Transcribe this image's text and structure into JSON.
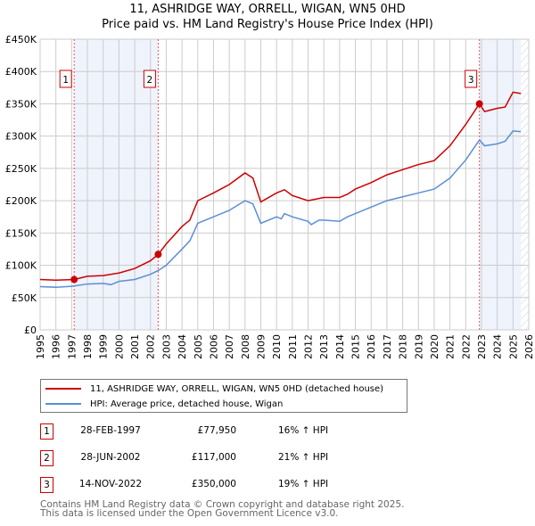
{
  "chart_data": {
    "type": "line",
    "title": "11, ASHRIDGE WAY, ORRELL, WIGAN, WN5 0HD",
    "subtitle": "Price paid vs. HM Land Registry's House Price Index (HPI)",
    "xlim": [
      1995,
      2026
    ],
    "ylim": [
      0,
      450000
    ],
    "yticks": [
      0,
      50000,
      100000,
      150000,
      200000,
      250000,
      300000,
      350000,
      400000,
      450000
    ],
    "ytick_labels": [
      "£0",
      "£50K",
      "£100K",
      "£150K",
      "£200K",
      "£250K",
      "£300K",
      "£350K",
      "£400K",
      "£450K"
    ],
    "xticks": [
      1995,
      1996,
      1997,
      1998,
      1999,
      2000,
      2001,
      2002,
      2003,
      2004,
      2005,
      2006,
      2007,
      2008,
      2009,
      2010,
      2011,
      2012,
      2013,
      2014,
      2015,
      2016,
      2017,
      2018,
      2019,
      2020,
      2021,
      2022,
      2023,
      2024,
      2025,
      2026
    ],
    "grid": true,
    "series": [
      {
        "name": "11, ASHRIDGE WAY, ORRELL, WIGAN, WN5 0HD (detached house)",
        "color": "#cc0000",
        "x": [
          1995,
          1996,
          1997.17,
          1998,
          1999,
          2000,
          2001,
          2002,
          2002.5,
          2003,
          2004,
          2004.5,
          2005,
          2006,
          2007,
          2008,
          2008.5,
          2009,
          2010,
          2010.5,
          2011,
          2012,
          2013,
          2014,
          2014.5,
          2015,
          2016,
          2017,
          2018,
          2019,
          2020,
          2021,
          2022,
          2022.87,
          2023.2,
          2024,
          2024.5,
          2025,
          2025.5
        ],
        "y": [
          78000,
          77000,
          77950,
          83000,
          84000,
          88000,
          95000,
          107000,
          117000,
          133000,
          160000,
          170000,
          200000,
          212000,
          225000,
          243000,
          235000,
          198000,
          212000,
          217000,
          208000,
          200000,
          205000,
          205000,
          210000,
          218000,
          228000,
          240000,
          248000,
          256000,
          262000,
          285000,
          318000,
          350000,
          338000,
          343000,
          345000,
          368000,
          366000
        ]
      },
      {
        "name": "HPI: Average price, detached house, Wigan",
        "color": "#5b8fd4",
        "x": [
          1995,
          1996,
          1997,
          1998,
          1999,
          1999.5,
          2000,
          2001,
          2002,
          2002.5,
          2003,
          2004,
          2004.5,
          2005,
          2006,
          2007,
          2008,
          2008.5,
          2009,
          2010,
          2010.3,
          2010.5,
          2011,
          2012,
          2012.2,
          2012.7,
          2013,
          2014,
          2014.5,
          2015,
          2016,
          2017,
          2018,
          2019,
          2020,
          2021,
          2022,
          2022.87,
          2023.2,
          2024,
          2024.5,
          2025,
          2025.5
        ],
        "y": [
          67000,
          66000,
          67500,
          71000,
          72000,
          70000,
          75000,
          78000,
          86000,
          92000,
          100000,
          125000,
          138000,
          165000,
          175000,
          185000,
          200000,
          195000,
          165000,
          175000,
          172000,
          180000,
          175000,
          168000,
          163000,
          170000,
          170000,
          168000,
          175000,
          180000,
          190000,
          200000,
          206000,
          212000,
          218000,
          235000,
          263000,
          294000,
          285000,
          288000,
          292000,
          308000,
          307000
        ]
      }
    ],
    "sales": [
      {
        "id": "1",
        "x": 1997.16,
        "price": 77950,
        "date": "28-FEB-1997",
        "price_label": "£77,950",
        "hpi": "16% ↑ HPI"
      },
      {
        "id": "2",
        "x": 2002.49,
        "price": 117000,
        "date": "28-JUN-2002",
        "price_label": "£117,000",
        "hpi": "21% ↑ HPI"
      },
      {
        "id": "3",
        "x": 2022.87,
        "price": 350000,
        "date": "14-NOV-2022",
        "price_label": "£350,000",
        "hpi": "19% ↑ HPI"
      }
    ],
    "shaded": [
      [
        1997.16,
        2002.49
      ],
      [
        2022.87,
        2025.5
      ]
    ],
    "hatched_from": 2025.5,
    "legend_placement": "below"
  },
  "footer": [
    "Contains HM Land Registry data © Crown copyright and database right 2025.",
    "This data is licensed under the Open Government Licence v3.0."
  ]
}
